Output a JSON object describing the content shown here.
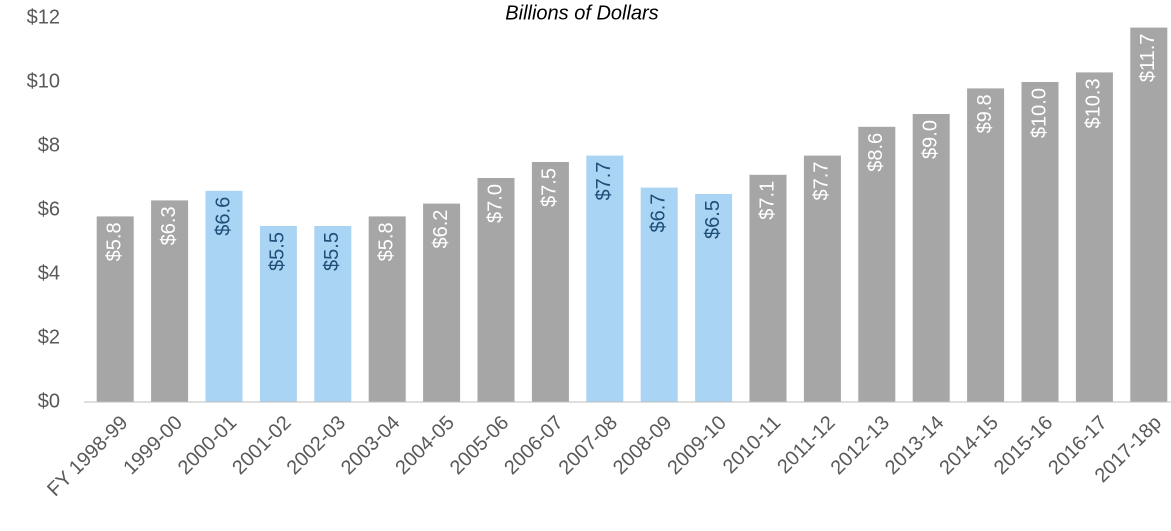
{
  "chart_data": {
    "type": "bar",
    "title": "Billions of Dollars",
    "categories": [
      "FY 1998-99",
      "1999-00",
      "2000-01",
      "2001-02",
      "2002-03",
      "2003-04",
      "2004-05",
      "2005-06",
      "2006-07",
      "2007-08",
      "2008-09",
      "2009-10",
      "2010-11",
      "2011-12",
      "2012-13",
      "2013-14",
      "2014-15",
      "2015-16",
      "2016-17",
      "2017-18p"
    ],
    "values": [
      5.8,
      6.3,
      6.6,
      5.5,
      5.5,
      5.8,
      6.2,
      7.0,
      7.5,
      7.7,
      6.7,
      6.5,
      7.1,
      7.7,
      8.6,
      9.0,
      9.8,
      10.0,
      10.3,
      11.7
    ],
    "value_labels": [
      "$5.8",
      "$6.3",
      "$6.6",
      "$5.5",
      "$5.5",
      "$5.8",
      "$6.2",
      "$7.0",
      "$7.5",
      "$7.7",
      "$6.7",
      "$6.5",
      "$7.1",
      "$7.7",
      "$8.6",
      "$9.0",
      "$9.8",
      "$10.0",
      "$10.3",
      "$11.7"
    ],
    "colors": [
      "#a6a6a6",
      "#a6a6a6",
      "#aad4f3",
      "#aad4f3",
      "#aad4f3",
      "#a6a6a6",
      "#a6a6a6",
      "#a6a6a6",
      "#a6a6a6",
      "#aad4f3",
      "#aad4f3",
      "#aad4f3",
      "#a6a6a6",
      "#a6a6a6",
      "#a6a6a6",
      "#a6a6a6",
      "#a6a6a6",
      "#a6a6a6",
      "#a6a6a6",
      "#a6a6a6"
    ],
    "label_colors": [
      "#ffffff",
      "#ffffff",
      "#1f4e79",
      "#1f4e79",
      "#1f4e79",
      "#ffffff",
      "#ffffff",
      "#ffffff",
      "#ffffff",
      "#1f4e79",
      "#1f4e79",
      "#1f4e79",
      "#ffffff",
      "#ffffff",
      "#ffffff",
      "#ffffff",
      "#ffffff",
      "#ffffff",
      "#ffffff",
      "#ffffff"
    ],
    "ylim": [
      0,
      12
    ],
    "yticks": [
      {
        "value": 0,
        "label": "$0"
      },
      {
        "value": 2,
        "label": "$2"
      },
      {
        "value": 4,
        "label": "$4"
      },
      {
        "value": 6,
        "label": "$6"
      },
      {
        "value": 8,
        "label": "$8"
      },
      {
        "value": 10,
        "label": "$10"
      },
      {
        "value": 12,
        "label": "$12"
      }
    ],
    "grid": false
  }
}
